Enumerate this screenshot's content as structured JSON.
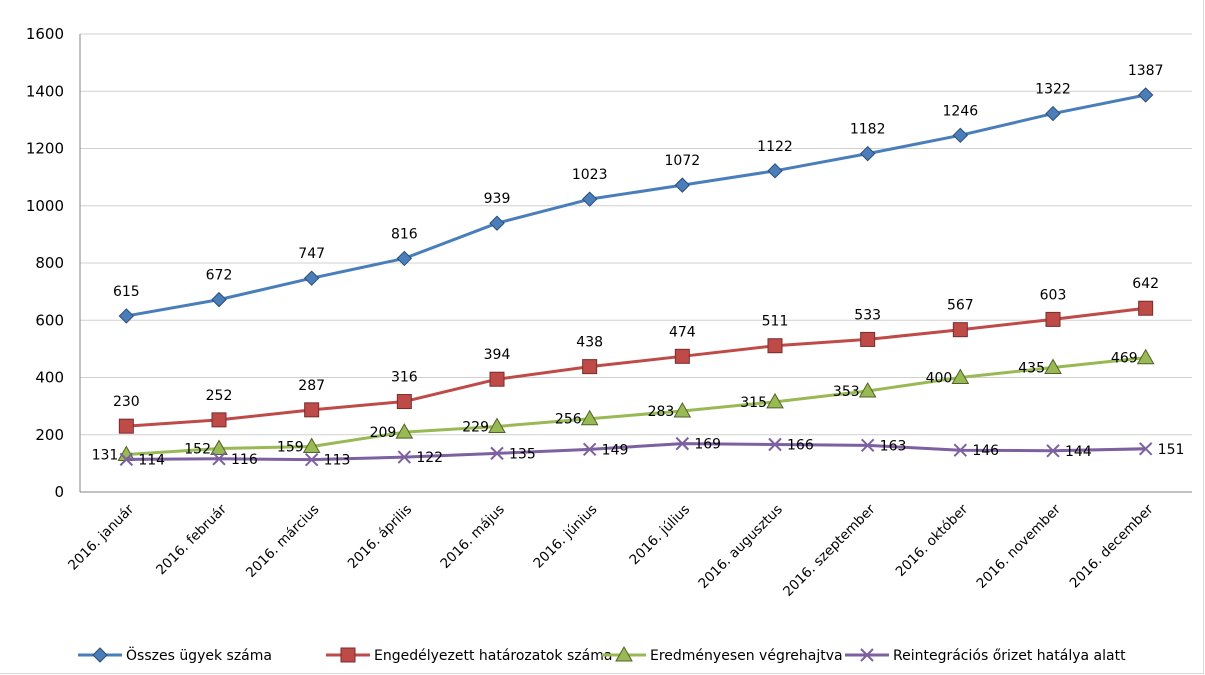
{
  "chart_data": {
    "type": "line",
    "title": "",
    "xlabel": "",
    "ylabel": "",
    "ylim": [
      0,
      1600
    ],
    "yticks": [
      0,
      200,
      400,
      600,
      800,
      1000,
      1200,
      1400,
      1600
    ],
    "grid": true,
    "legend_position": "bottom",
    "categories": [
      "2016. január",
      "2016. február",
      "2016. március",
      "2016. április",
      "2016. május",
      "2016. június",
      "2016. július",
      "2016. augusztus",
      "2016. szeptember",
      "2016. október",
      "2016. november",
      "2016. december"
    ],
    "series": [
      {
        "name": "Összes ügyek száma",
        "color": "#4a7ebb",
        "marker": "diamond",
        "values": [
          615,
          672,
          747,
          816,
          939,
          1023,
          1072,
          1122,
          1182,
          1246,
          1322,
          1387
        ]
      },
      {
        "name": "Engedélyezett határozatok száma",
        "color": "#be4b48",
        "marker": "square",
        "values": [
          230,
          252,
          287,
          316,
          394,
          438,
          474,
          511,
          533,
          567,
          603,
          642
        ]
      },
      {
        "name": "Eredményesen végrehajtva",
        "color": "#98b954",
        "marker": "triangle",
        "values": [
          131,
          152,
          159,
          209,
          229,
          256,
          283,
          315,
          353,
          400,
          435,
          469
        ]
      },
      {
        "name": "Reintegrációs őrizet hatálya alatt",
        "color": "#7d60a0",
        "marker": "x",
        "values": [
          114,
          116,
          113,
          122,
          135,
          149,
          169,
          166,
          163,
          146,
          144,
          151
        ]
      }
    ]
  }
}
